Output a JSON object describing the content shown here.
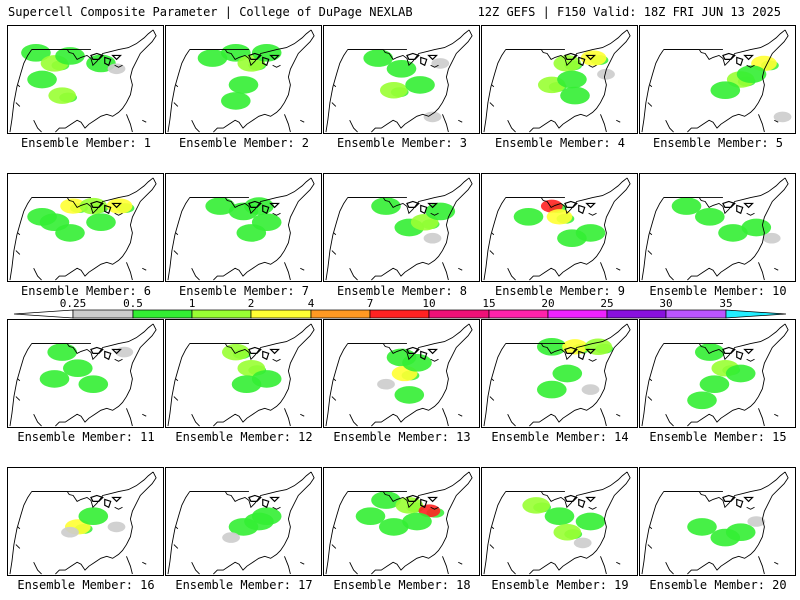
{
  "header": {
    "left": "Supercell Composite Parameter | College of DuPage NEXLAB",
    "right": "12Z GEFS | F150 Valid: 18Z FRI JUN 13 2025"
  },
  "members": [
    "Ensemble Member: 1",
    "Ensemble Member: 2",
    "Ensemble Member: 3",
    "Ensemble Member: 4",
    "Ensemble Member: 5",
    "Ensemble Member: 6",
    "Ensemble Member: 7",
    "Ensemble Member: 8",
    "Ensemble Member: 9",
    "Ensemble Member: 10",
    "Ensemble Member: 11",
    "Ensemble Member: 12",
    "Ensemble Member: 13",
    "Ensemble Member: 14",
    "Ensemble Member: 15",
    "Ensemble Member: 16",
    "Ensemble Member: 17",
    "Ensemble Member: 18",
    "Ensemble Member: 19",
    "Ensemble Member: 20"
  ],
  "colorbar": {
    "labels": [
      "0.25",
      "0.5",
      "1",
      "2",
      "4",
      "7",
      "10",
      "15",
      "20",
      "25",
      "30",
      "35"
    ],
    "colors": [
      "#cccccc",
      "#33ee33",
      "#99ff33",
      "#ffff33",
      "#ff9922",
      "#ff2222",
      "#ee1177",
      "#ff22aa",
      "#ee22ff",
      "#8811dd",
      "#bb55ff",
      "#22eeff"
    ],
    "under_color": "#ffffff"
  },
  "fields": {
    "1": [
      [
        0.18,
        0.25,
        1
      ],
      [
        0.3,
        0.35,
        2
      ],
      [
        0.4,
        0.28,
        1
      ],
      [
        0.22,
        0.5,
        1
      ],
      [
        0.35,
        0.65,
        2
      ],
      [
        0.6,
        0.35,
        1
      ],
      [
        0.7,
        0.4,
        0
      ]
    ],
    "2": [
      [
        0.3,
        0.3,
        1
      ],
      [
        0.45,
        0.25,
        1
      ],
      [
        0.55,
        0.35,
        2
      ],
      [
        0.5,
        0.55,
        1
      ],
      [
        0.45,
        0.7,
        1
      ],
      [
        0.65,
        0.25,
        1
      ]
    ],
    "3": [
      [
        0.35,
        0.3,
        1
      ],
      [
        0.5,
        0.4,
        1
      ],
      [
        0.45,
        0.6,
        2
      ],
      [
        0.62,
        0.55,
        1
      ],
      [
        0.75,
        0.35,
        0
      ],
      [
        0.7,
        0.85,
        0
      ]
    ],
    "4": [
      [
        0.55,
        0.35,
        2
      ],
      [
        0.72,
        0.3,
        3
      ],
      [
        0.45,
        0.55,
        2
      ],
      [
        0.58,
        0.5,
        1
      ],
      [
        0.8,
        0.45,
        0
      ],
      [
        0.6,
        0.65,
        1
      ]
    ],
    "5": [
      [
        0.65,
        0.5,
        2
      ],
      [
        0.8,
        0.35,
        3
      ],
      [
        0.55,
        0.6,
        1
      ],
      [
        0.72,
        0.45,
        1
      ],
      [
        0.92,
        0.85,
        0
      ]
    ],
    "6": [
      [
        0.42,
        0.3,
        3
      ],
      [
        0.55,
        0.3,
        2
      ],
      [
        0.72,
        0.3,
        3
      ],
      [
        0.3,
        0.45,
        1
      ],
      [
        0.4,
        0.55,
        1
      ],
      [
        0.6,
        0.45,
        1
      ],
      [
        0.22,
        0.4,
        1
      ]
    ],
    "7": [
      [
        0.35,
        0.3,
        1
      ],
      [
        0.5,
        0.35,
        1
      ],
      [
        0.55,
        0.55,
        1
      ],
      [
        0.65,
        0.45,
        1
      ],
      [
        0.6,
        0.3,
        1
      ]
    ],
    "8": [
      [
        0.4,
        0.3,
        1
      ],
      [
        0.55,
        0.5,
        1
      ],
      [
        0.65,
        0.45,
        2
      ],
      [
        0.75,
        0.35,
        1
      ],
      [
        0.7,
        0.6,
        0
      ]
    ],
    "9": [
      [
        0.45,
        0.3,
        5
      ],
      [
        0.5,
        0.4,
        3
      ],
      [
        0.58,
        0.6,
        1
      ],
      [
        0.7,
        0.55,
        1
      ],
      [
        0.3,
        0.4,
        1
      ]
    ],
    "10": [
      [
        0.3,
        0.3,
        1
      ],
      [
        0.45,
        0.4,
        1
      ],
      [
        0.6,
        0.55,
        1
      ],
      [
        0.75,
        0.5,
        1
      ],
      [
        0.85,
        0.6,
        0
      ]
    ],
    "11": [
      [
        0.35,
        0.3,
        1
      ],
      [
        0.45,
        0.45,
        1
      ],
      [
        0.55,
        0.6,
        1
      ],
      [
        0.3,
        0.55,
        1
      ],
      [
        0.75,
        0.3,
        0
      ]
    ],
    "12": [
      [
        0.45,
        0.3,
        2
      ],
      [
        0.55,
        0.45,
        2
      ],
      [
        0.52,
        0.6,
        1
      ],
      [
        0.65,
        0.55,
        1
      ]
    ],
    "13": [
      [
        0.5,
        0.35,
        1
      ],
      [
        0.52,
        0.5,
        3
      ],
      [
        0.6,
        0.4,
        1
      ],
      [
        0.4,
        0.6,
        0
      ],
      [
        0.55,
        0.7,
        1
      ]
    ],
    "14": [
      [
        0.45,
        0.25,
        1
      ],
      [
        0.6,
        0.25,
        3
      ],
      [
        0.75,
        0.25,
        2
      ],
      [
        0.55,
        0.5,
        1
      ],
      [
        0.45,
        0.65,
        1
      ],
      [
        0.7,
        0.65,
        0
      ]
    ],
    "15": [
      [
        0.45,
        0.3,
        1
      ],
      [
        0.55,
        0.45,
        2
      ],
      [
        0.48,
        0.6,
        1
      ],
      [
        0.65,
        0.5,
        1
      ],
      [
        0.4,
        0.75,
        1
      ]
    ],
    "16": [
      [
        0.45,
        0.55,
        3
      ],
      [
        0.55,
        0.45,
        1
      ],
      [
        0.4,
        0.6,
        0
      ],
      [
        0.7,
        0.55,
        0
      ]
    ],
    "17": [
      [
        0.5,
        0.55,
        1
      ],
      [
        0.6,
        0.5,
        1
      ],
      [
        0.65,
        0.45,
        1
      ],
      [
        0.42,
        0.65,
        0
      ]
    ],
    "18": [
      [
        0.4,
        0.3,
        1
      ],
      [
        0.55,
        0.35,
        2
      ],
      [
        0.68,
        0.4,
        5
      ],
      [
        0.6,
        0.5,
        1
      ],
      [
        0.3,
        0.45,
        1
      ],
      [
        0.45,
        0.55,
        1
      ]
    ],
    "19": [
      [
        0.35,
        0.35,
        2
      ],
      [
        0.5,
        0.45,
        1
      ],
      [
        0.55,
        0.6,
        2
      ],
      [
        0.7,
        0.5,
        1
      ],
      [
        0.65,
        0.7,
        0
      ]
    ],
    "20": [
      [
        0.4,
        0.55,
        1
      ],
      [
        0.55,
        0.65,
        1
      ],
      [
        0.65,
        0.6,
        1
      ],
      [
        0.75,
        0.5,
        0
      ]
    ]
  }
}
